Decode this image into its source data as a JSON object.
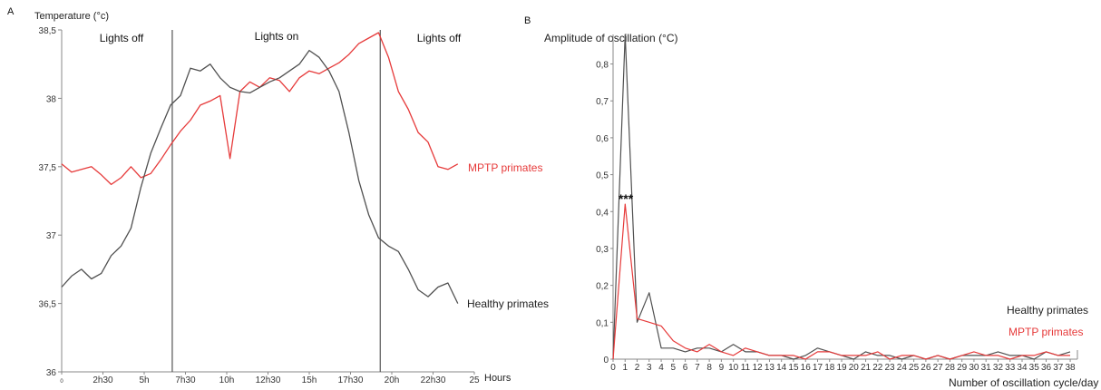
{
  "figure": {
    "panel_a_label": "A",
    "panel_b_label": "B"
  },
  "colors": {
    "healthy": "#505050",
    "mptp": "#e63a3a",
    "axis": "#888888",
    "divider": "#555555"
  },
  "chart_data": [
    {
      "type": "line",
      "title": "",
      "ylabel": "Temperature (°c)",
      "xlabel": "Hours",
      "xlim": [
        0,
        25
      ],
      "ylim": [
        36,
        38.5
      ],
      "y_ticks": [
        "36",
        "36,5",
        "37",
        "37,5",
        "38",
        "38,5"
      ],
      "x_tick_labels": [
        {
          "x": 0,
          "label": "0"
        },
        {
          "x": 2.5,
          "label": "2h30"
        },
        {
          "x": 5,
          "label": "5h"
        },
        {
          "x": 7.5,
          "label": "7h30"
        },
        {
          "x": 10,
          "label": "10h"
        },
        {
          "x": 12.5,
          "label": "12h30"
        },
        {
          "x": 15,
          "label": "15h"
        },
        {
          "x": 17.5,
          "label": "17h30"
        },
        {
          "x": 20,
          "label": "20h"
        },
        {
          "x": 22.5,
          "label": "22h30"
        },
        {
          "x": 25,
          "label": "25"
        }
      ],
      "light_transitions": [
        6.7,
        19.3
      ],
      "regions": [
        "Lights off",
        "Lights on",
        "Lights off"
      ],
      "series": [
        {
          "name": "MPTP primates",
          "color": "#e63a3a",
          "x": [
            0,
            0.6,
            1.2,
            1.8,
            2.4,
            3,
            3.6,
            4.2,
            4.8,
            5.4,
            6,
            6.6,
            7.2,
            7.8,
            8.4,
            9,
            9.6,
            10.2,
            10.8,
            11.4,
            12,
            12.6,
            13.2,
            13.8,
            14.4,
            15,
            15.6,
            16.2,
            16.8,
            17.4,
            18,
            18.6,
            19.2,
            19.8,
            20.4,
            21,
            21.6,
            22.2,
            22.8,
            23.4,
            24
          ],
          "y": [
            37.52,
            37.46,
            37.48,
            37.5,
            37.44,
            37.37,
            37.42,
            37.5,
            37.42,
            37.45,
            37.55,
            37.66,
            37.76,
            37.84,
            37.95,
            37.98,
            38.02,
            37.56,
            38.05,
            38.12,
            38.08,
            38.15,
            38.13,
            38.05,
            38.15,
            38.2,
            38.18,
            38.22,
            38.26,
            38.32,
            38.4,
            38.44,
            38.48,
            38.3,
            38.05,
            37.92,
            37.75,
            37.68,
            37.5,
            37.48,
            37.52
          ]
        },
        {
          "name": "Healthy primates",
          "color": "#505050",
          "x": [
            0,
            0.6,
            1.2,
            1.8,
            2.4,
            3,
            3.6,
            4.2,
            4.8,
            5.4,
            6,
            6.6,
            7.2,
            7.8,
            8.4,
            9,
            9.6,
            10.2,
            10.8,
            11.4,
            12,
            12.6,
            13.2,
            13.8,
            14.4,
            15,
            15.6,
            16.2,
            16.8,
            17.4,
            18,
            18.6,
            19.2,
            19.8,
            20.4,
            21,
            21.6,
            22.2,
            22.8,
            23.4,
            24
          ],
          "y": [
            36.62,
            36.7,
            36.75,
            36.68,
            36.72,
            36.85,
            36.92,
            37.05,
            37.35,
            37.6,
            37.78,
            37.95,
            38.02,
            38.22,
            38.2,
            38.25,
            38.15,
            38.08,
            38.05,
            38.04,
            38.08,
            38.12,
            38.15,
            38.2,
            38.25,
            38.35,
            38.3,
            38.2,
            38.05,
            37.75,
            37.4,
            37.15,
            36.98,
            36.92,
            36.88,
            36.75,
            36.6,
            36.55,
            36.62,
            36.65,
            36.5
          ]
        }
      ],
      "annotations": [
        {
          "text": "MPTP primates",
          "color": "#e63a3a"
        },
        {
          "text": "Healthy primates",
          "color": "#222222"
        }
      ]
    },
    {
      "type": "line",
      "title": "",
      "ylabel": "Amplitude of oscillation (°C)",
      "xlabel": "Number of oscillation cycle/day",
      "xlim": [
        0,
        38.6
      ],
      "ylim": [
        0,
        0.88
      ],
      "y_ticks": [
        "0",
        "0,1",
        "0,2",
        "0,3",
        "0,4",
        "0,5",
        "0,6",
        "0,7",
        "0,8"
      ],
      "x_ticks": [
        "0",
        "1",
        "2",
        "3",
        "4",
        "5",
        "6",
        "7",
        "8",
        "9",
        "10",
        "11",
        "12",
        "13",
        "14",
        "15",
        "16",
        "17",
        "18",
        "19",
        "20",
        "21",
        "22",
        "23",
        "24",
        "25",
        "26",
        "27",
        "28",
        "29",
        "30",
        "31",
        "32",
        "33",
        "34",
        "35",
        "36",
        "37",
        "38"
      ],
      "significance_label": "***",
      "series": [
        {
          "name": "Healthy primates",
          "color": "#505050",
          "x": [
            0,
            1,
            2,
            3,
            4,
            5,
            6,
            7,
            8,
            9,
            10,
            11,
            12,
            13,
            14,
            15,
            16,
            17,
            18,
            19,
            20,
            21,
            22,
            23,
            24,
            25,
            26,
            27,
            28,
            29,
            30,
            31,
            32,
            33,
            34,
            35,
            36,
            37,
            38
          ],
          "y": [
            0,
            0.88,
            0.1,
            0.18,
            0.03,
            0.03,
            0.02,
            0.03,
            0.03,
            0.02,
            0.04,
            0.02,
            0.02,
            0.01,
            0.01,
            0.0,
            0.01,
            0.03,
            0.02,
            0.01,
            0.0,
            0.02,
            0.01,
            0.01,
            0.0,
            0.01,
            0.0,
            0.01,
            0.0,
            0.01,
            0.01,
            0.01,
            0.02,
            0.01,
            0.01,
            0.0,
            0.02,
            0.01,
            0.02
          ]
        },
        {
          "name": "MPTP primates",
          "color": "#e63a3a",
          "x": [
            0,
            1,
            2,
            3,
            4,
            5,
            6,
            7,
            8,
            9,
            10,
            11,
            12,
            13,
            14,
            15,
            16,
            17,
            18,
            19,
            20,
            21,
            22,
            23,
            24,
            25,
            26,
            27,
            28,
            29,
            30,
            31,
            32,
            33,
            34,
            35,
            36,
            37,
            38
          ],
          "y": [
            0,
            0.42,
            0.11,
            0.1,
            0.09,
            0.05,
            0.03,
            0.02,
            0.04,
            0.02,
            0.01,
            0.03,
            0.02,
            0.01,
            0.01,
            0.01,
            0.0,
            0.02,
            0.02,
            0.01,
            0.01,
            0.01,
            0.02,
            0.0,
            0.01,
            0.01,
            0.0,
            0.01,
            0.0,
            0.01,
            0.02,
            0.01,
            0.01,
            0.0,
            0.01,
            0.01,
            0.02,
            0.01,
            0.01
          ]
        }
      ],
      "legend_position": "bottom-right",
      "legend": [
        {
          "text": "Healthy primates",
          "color": "#222222"
        },
        {
          "text": "MPTP primates",
          "color": "#e63a3a"
        }
      ]
    }
  ]
}
